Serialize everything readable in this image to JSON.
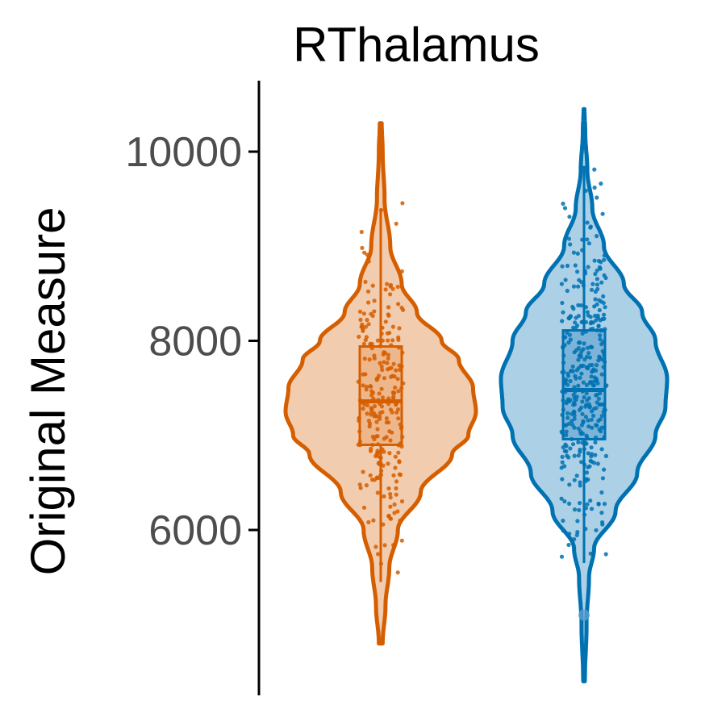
{
  "chart_data": {
    "type": "violin",
    "title": "RThalamus",
    "xlabel": "",
    "ylabel": "Original Measure",
    "ylim": [
      4500,
      10600
    ],
    "yticks": [
      6000,
      8000,
      10000
    ],
    "grid": false,
    "legend": "none",
    "colors": {
      "axis": "#000000",
      "tick_label": "#4d4d4d"
    },
    "series": [
      {
        "color": "#d55e00",
        "fill": "#f2ccae",
        "box_fill": "#e9a873",
        "min": 4800,
        "max": 10300,
        "q1": 6900,
        "median": 7360,
        "q3": 7940,
        "whisker_low": 5450,
        "whisker_high": 9400,
        "outliers": [],
        "density": [
          [
            4800,
            0.02
          ],
          [
            5200,
            0.05
          ],
          [
            5600,
            0.09
          ],
          [
            6000,
            0.18
          ],
          [
            6400,
            0.42
          ],
          [
            6800,
            0.75
          ],
          [
            7000,
            0.92
          ],
          [
            7250,
            1.0
          ],
          [
            7500,
            0.97
          ],
          [
            7800,
            0.82
          ],
          [
            8000,
            0.64
          ],
          [
            8300,
            0.38
          ],
          [
            8600,
            0.22
          ],
          [
            9000,
            0.1
          ],
          [
            9500,
            0.04
          ],
          [
            10000,
            0.02
          ],
          [
            10300,
            0.01
          ]
        ],
        "point_count": 260,
        "point_range": [
          5450,
          9700
        ]
      },
      {
        "color": "#0072b2",
        "fill": "#acd0e6",
        "box_fill": "#5ba0cf",
        "min": 4400,
        "max": 10450,
        "q1": 6960,
        "median": 7480,
        "q3": 8110,
        "whisker_low": 5650,
        "whisker_high": 9850,
        "outliers": [
          5100
        ],
        "density": [
          [
            4400,
            0.01
          ],
          [
            5000,
            0.03
          ],
          [
            5500,
            0.06
          ],
          [
            5800,
            0.12
          ],
          [
            6200,
            0.38
          ],
          [
            6600,
            0.64
          ],
          [
            7000,
            0.86
          ],
          [
            7300,
            0.98
          ],
          [
            7600,
            1.0
          ],
          [
            8000,
            0.86
          ],
          [
            8300,
            0.7
          ],
          [
            8600,
            0.48
          ],
          [
            9000,
            0.24
          ],
          [
            9400,
            0.1
          ],
          [
            9800,
            0.04
          ],
          [
            10200,
            0.015
          ],
          [
            10450,
            0.005
          ]
        ],
        "point_count": 380,
        "point_range": [
          5650,
          9850
        ]
      }
    ]
  }
}
